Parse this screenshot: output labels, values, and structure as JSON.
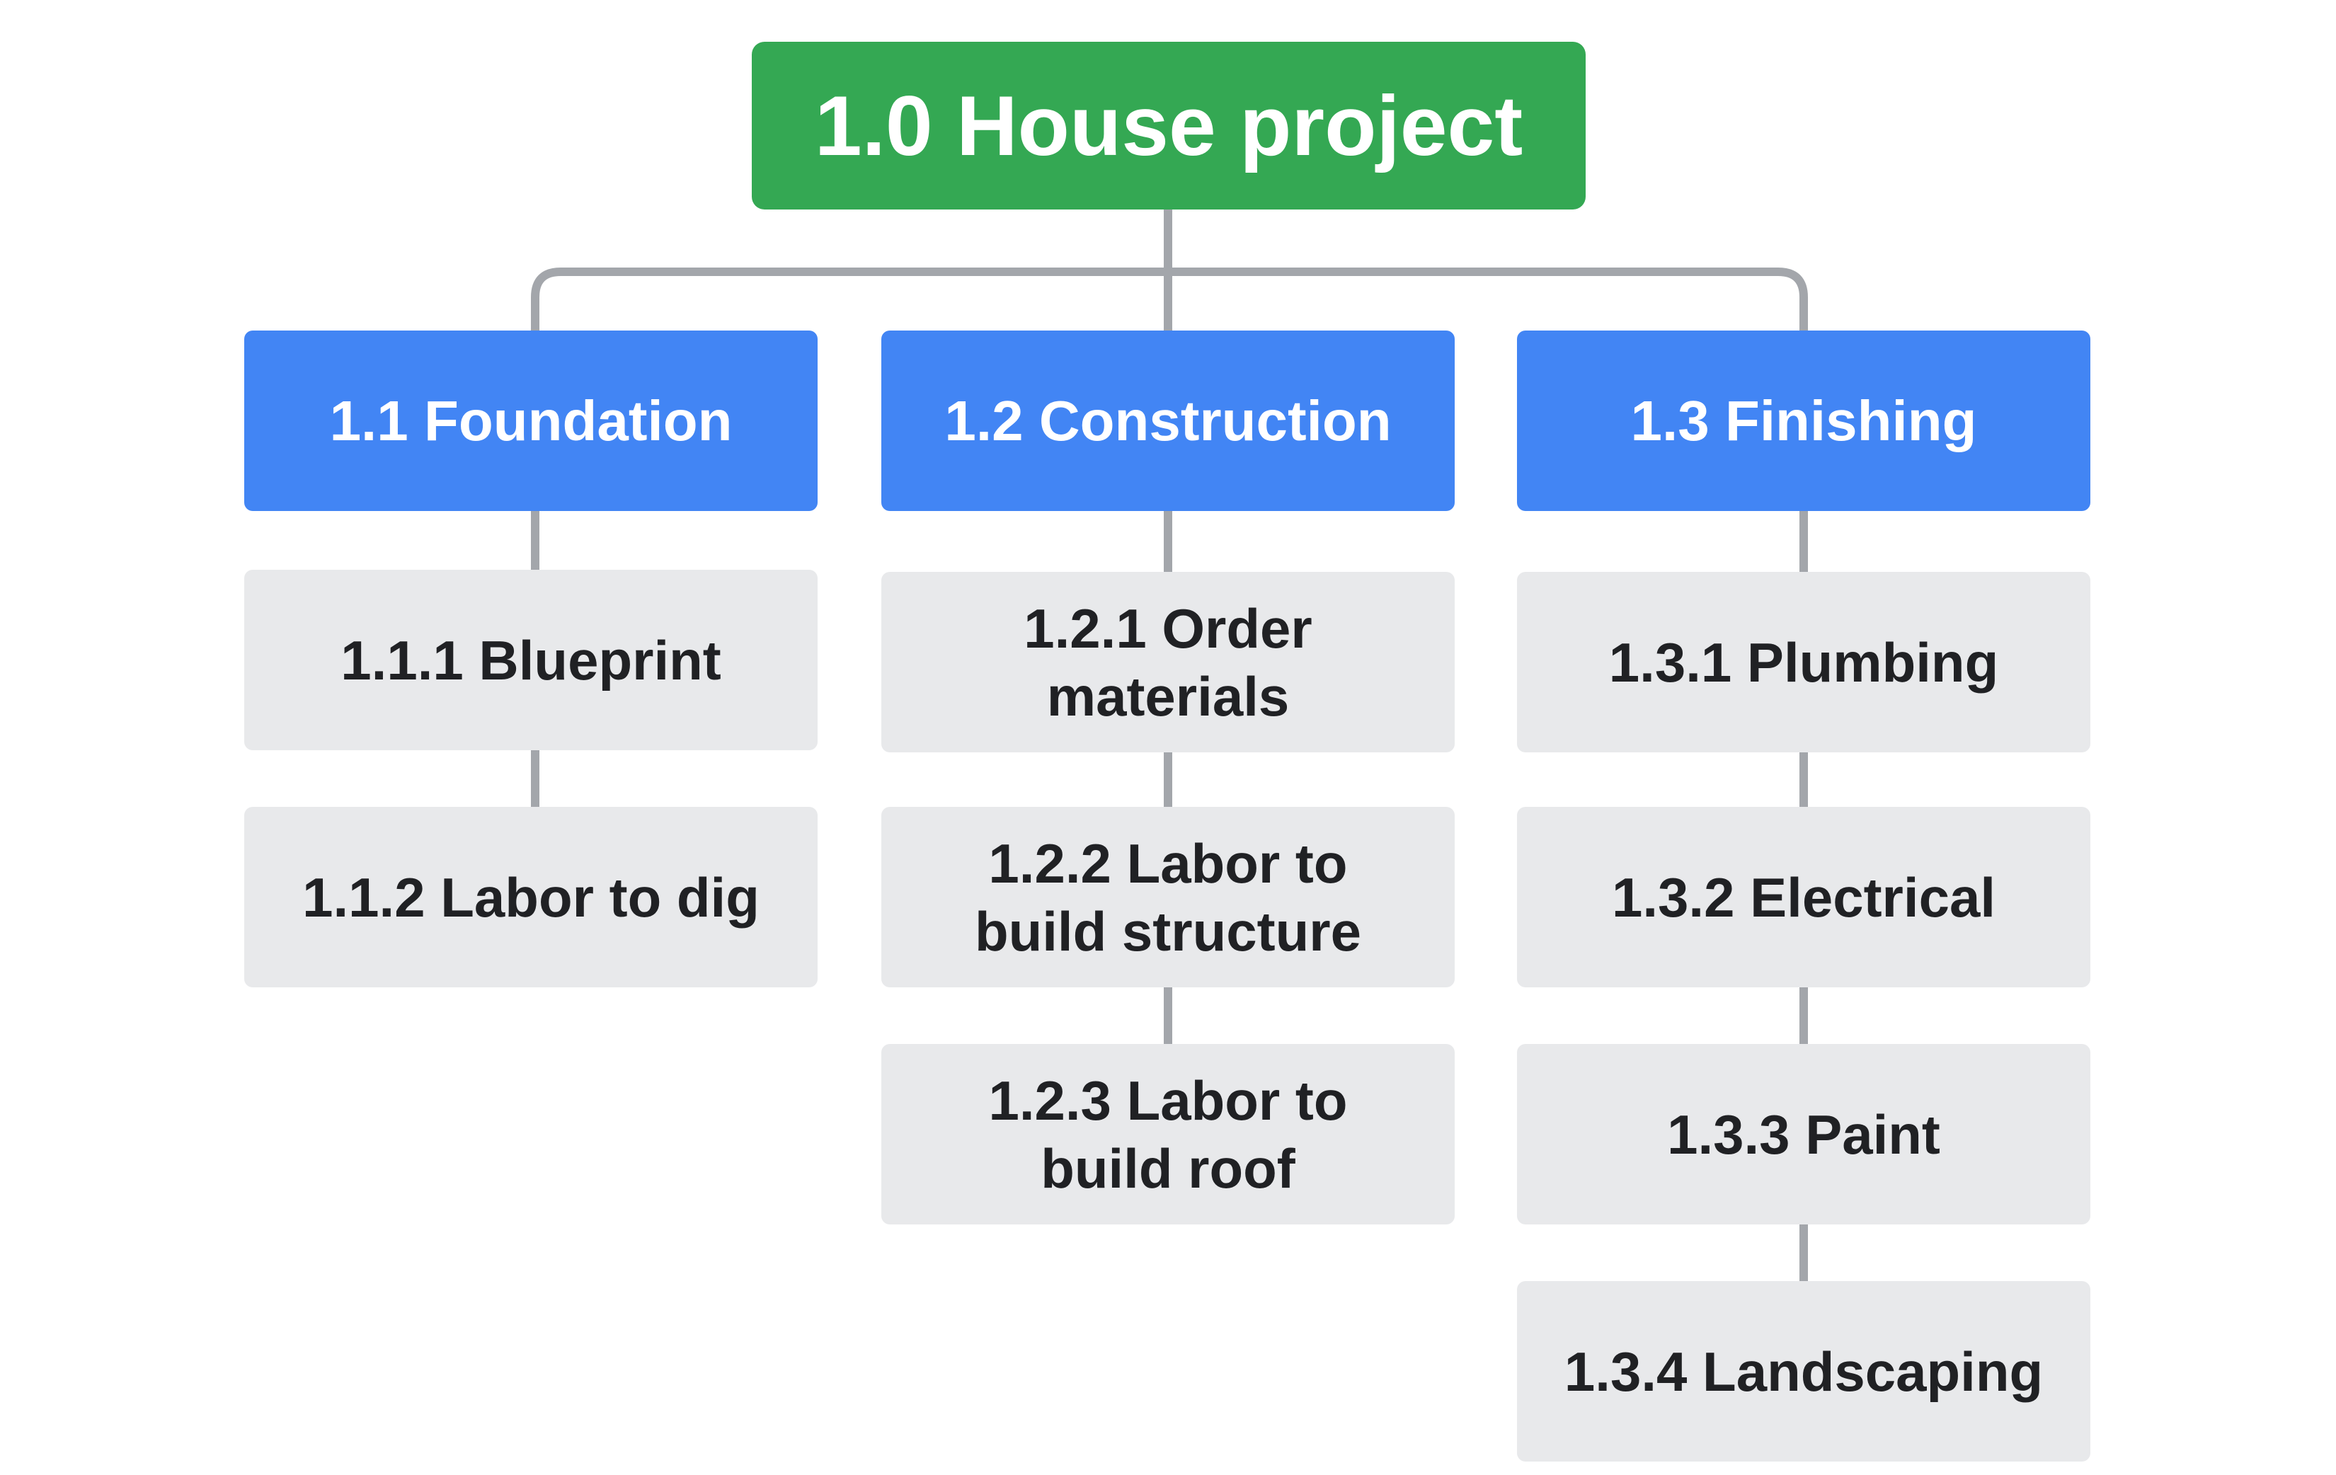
{
  "root": {
    "label": "1.0 House project",
    "color": "#34a853"
  },
  "branches": [
    {
      "label": "1.1 Foundation",
      "color": "#4285f4",
      "tasks": [
        "1.1.1 Blueprint",
        "1.1.2 Labor to dig"
      ]
    },
    {
      "label": "1.2 Construction",
      "color": "#4285f4",
      "tasks": [
        "1.2.1 Order\nmaterials",
        "1.2.2 Labor to\nbuild structure",
        "1.2.3  Labor to\nbuild roof"
      ]
    },
    {
      "label": "1.3 Finishing",
      "color": "#4285f4",
      "tasks": [
        "1.3.1 Plumbing",
        "1.3.2 Electrical",
        "1.3.3 Paint",
        "1.3.4 Landscaping"
      ]
    }
  ],
  "connector_color": "#a3a6ab",
  "task_box_color": "#e8e9eb"
}
